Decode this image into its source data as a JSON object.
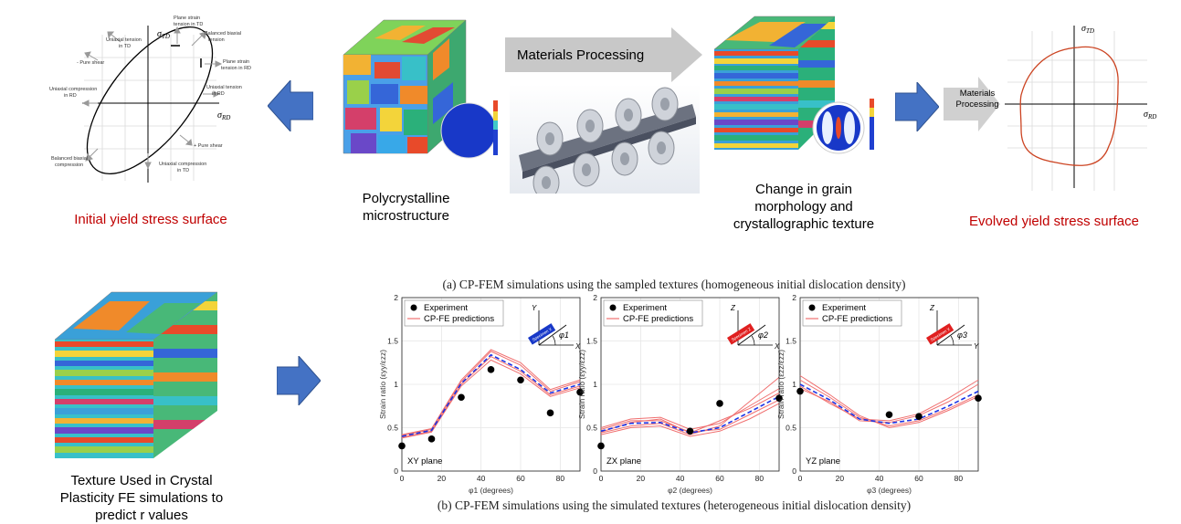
{
  "top": {
    "initial_title": "Initial yield stress surface",
    "evolved_title": "Evolved yield stress surface",
    "poly_label_line1": "Polycrystalline",
    "poly_label_line2": "microstructure",
    "process_label": "Materials Processing",
    "small_process_line1": "Materials",
    "small_process_line2": "Processing",
    "change_line1": "Change in grain",
    "change_line2": "morphology and",
    "change_line3": "crystallographic texture",
    "sigma_td": "σTD",
    "sigma_rd": "σRD",
    "ys_annotations": {
      "plane_strain_td": "Plane strain\ntension in TD",
      "balanced_tension": "Balanced biaxial\ntension",
      "uniaxial_td": "Uniaxial tension\nin TD",
      "pure_shear_neg": "- Pure shear",
      "plane_strain_rd": "Plane strain\ntension in RD",
      "uniaxial_comp_rd": "Uniaxial compression\nin RD",
      "uniaxial_tension_rd": "Uniaxial tension\nin RD",
      "pure_shear_pos": "+ Pure shear",
      "balanced_comp": "Balanced biaxial\ncompression",
      "uniaxial_comp_td": "Uniaxial compression\nin TD"
    }
  },
  "bottom": {
    "texture_line1": "Texture Used in Crystal",
    "texture_line2": "Plasticity FE simulations to",
    "texture_line3": "predict r values",
    "caption_a": "(a) CP-FEM simulations using the sampled textures (homogeneous initial dislocation density)",
    "caption_b": "(b) CP-FEM simulations using the simulated textures (heterogeneous initial dislocation density)"
  },
  "chart_data": [
    {
      "type": "line",
      "plane_label": "XY plane",
      "xlabel": "φ1 (degrees)",
      "ylabel": "Strain ratio (εyy/εzz)",
      "xlim": [
        0,
        90
      ],
      "ylim": [
        0,
        2
      ],
      "xticks": [
        0,
        20,
        40,
        60,
        80
      ],
      "yticks": [
        0,
        0.5,
        1,
        1.5,
        2
      ],
      "legend": [
        "Experiment",
        "CP-FE predictions"
      ],
      "experiment": {
        "x": [
          0,
          15,
          30,
          45,
          60,
          75,
          90
        ],
        "y": [
          0.29,
          0.37,
          0.85,
          1.17,
          1.05,
          0.67,
          0.91
        ]
      },
      "mean": {
        "x": [
          0,
          15,
          30,
          45,
          60,
          75,
          90
        ],
        "y": [
          0.4,
          0.47,
          1.01,
          1.34,
          1.17,
          0.9,
          1.0
        ]
      },
      "predictions": [
        [
          0.38,
          0.45,
          0.98,
          1.28,
          1.12,
          0.86,
          0.96
        ],
        [
          0.41,
          0.48,
          1.03,
          1.38,
          1.22,
          0.92,
          1.03
        ],
        [
          0.39,
          0.46,
          1.0,
          1.32,
          1.15,
          0.88,
          0.98
        ],
        [
          0.42,
          0.49,
          1.05,
          1.4,
          1.25,
          0.94,
          1.05
        ]
      ],
      "inset_axes": [
        "Y",
        "X"
      ],
      "inset_angle": "φ1",
      "specimen": "Specimen X"
    },
    {
      "type": "line",
      "plane_label": "ZX plane",
      "xlabel": "φ2 (degrees)",
      "ylabel": "Strain ratio (εyy/εzz)",
      "xlim": [
        0,
        90
      ],
      "ylim": [
        0,
        2
      ],
      "xticks": [
        0,
        20,
        40,
        60,
        80
      ],
      "yticks": [
        0,
        0.5,
        1,
        1.5,
        2
      ],
      "legend": [
        "Experiment",
        "CP-FE predictions"
      ],
      "experiment": {
        "x": [
          0,
          45,
          60,
          90
        ],
        "y": [
          0.29,
          0.46,
          0.78,
          0.84
        ]
      },
      "mean": {
        "x": [
          0,
          15,
          30,
          45,
          60,
          75,
          90
        ],
        "y": [
          0.46,
          0.55,
          0.56,
          0.44,
          0.5,
          0.68,
          0.86
        ]
      },
      "predictions": [
        [
          0.42,
          0.5,
          0.52,
          0.4,
          0.46,
          0.6,
          0.78
        ],
        [
          0.5,
          0.6,
          0.62,
          0.48,
          0.55,
          0.75,
          0.95
        ],
        [
          0.44,
          0.52,
          0.55,
          0.42,
          0.52,
          0.8,
          1.08
        ],
        [
          0.48,
          0.58,
          0.58,
          0.45,
          0.48,
          0.65,
          0.82
        ],
        [
          0.45,
          0.56,
          0.6,
          0.44,
          0.58,
          0.72,
          0.9
        ]
      ],
      "inset_axes": [
        "Z",
        "X"
      ],
      "inset_angle": "φ2",
      "specimen": "Specimen Z"
    },
    {
      "type": "line",
      "plane_label": "YZ plane",
      "xlabel": "φ3 (degrees)",
      "ylabel": "Strain ratio (εzz/εzz)",
      "xlim": [
        0,
        90
      ],
      "ylim": [
        0,
        2
      ],
      "xticks": [
        0,
        20,
        40,
        60,
        80
      ],
      "yticks": [
        0,
        0.5,
        1,
        1.5,
        2
      ],
      "legend": [
        "Experiment",
        "CP-FE predictions"
      ],
      "experiment": {
        "x": [
          0,
          45,
          60,
          90
        ],
        "y": [
          0.92,
          0.65,
          0.63,
          0.84
        ]
      },
      "mean": {
        "x": [
          0,
          15,
          30,
          45,
          60,
          75,
          90
        ],
        "y": [
          1.0,
          0.82,
          0.6,
          0.55,
          0.6,
          0.75,
          0.92
        ]
      },
      "predictions": [
        [
          1.05,
          0.85,
          0.62,
          0.52,
          0.58,
          0.72,
          0.88
        ],
        [
          0.95,
          0.8,
          0.58,
          0.56,
          0.64,
          0.8,
          1.0
        ],
        [
          1.1,
          0.88,
          0.64,
          0.5,
          0.56,
          0.7,
          0.86
        ],
        [
          0.98,
          0.78,
          0.6,
          0.58,
          0.66,
          0.84,
          1.05
        ]
      ],
      "inset_axes": [
        "Z",
        "Y"
      ],
      "inset_angle": "φ3",
      "specimen": "Specimen X"
    }
  ],
  "colors": {
    "accent_red": "#c00000",
    "arrow_blue": "#4472c4",
    "arrow_gray": "#c8c8c8",
    "curve_red": "#cc4422",
    "pred_red": "#f07070",
    "mean_blue": "#1a33e6"
  }
}
